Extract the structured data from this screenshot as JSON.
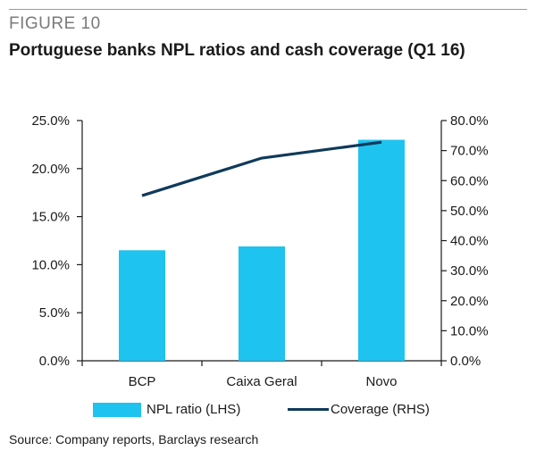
{
  "figure_label": "FIGURE 10",
  "title": "Portuguese banks NPL ratios and cash coverage (Q1 16)",
  "source": "Source: Company reports, Barclays research",
  "colors": {
    "bar": "#1ec3ef",
    "line": "#0f3a5a",
    "axis": "#1a1a1a"
  },
  "chart_data": {
    "type": "bar",
    "categories": [
      "BCP",
      "Caixa Geral",
      "Novo"
    ],
    "series": [
      {
        "name": "NPL ratio (LHS)",
        "type": "bar",
        "axis": "left",
        "values": [
          11.5,
          11.9,
          23.0
        ]
      },
      {
        "name": "Coverage (RHS)",
        "type": "line",
        "axis": "right",
        "values": [
          55.0,
          67.5,
          72.8
        ]
      }
    ],
    "y_left": {
      "ylim": [
        0,
        25
      ],
      "ticks": [
        0,
        5,
        10,
        15,
        20,
        25
      ],
      "tick_labels": [
        "0.0%",
        "5.0%",
        "10.0%",
        "15.0%",
        "20.0%",
        "25.0%"
      ]
    },
    "y_right": {
      "ylim": [
        0,
        80
      ],
      "ticks": [
        0,
        10,
        20,
        30,
        40,
        50,
        60,
        70,
        80
      ],
      "tick_labels": [
        "0.0%",
        "10.0%",
        "20.0%",
        "30.0%",
        "40.0%",
        "50.0%",
        "60.0%",
        "70.0%",
        "80.0%"
      ]
    },
    "grid": false,
    "legend_position": "bottom"
  }
}
